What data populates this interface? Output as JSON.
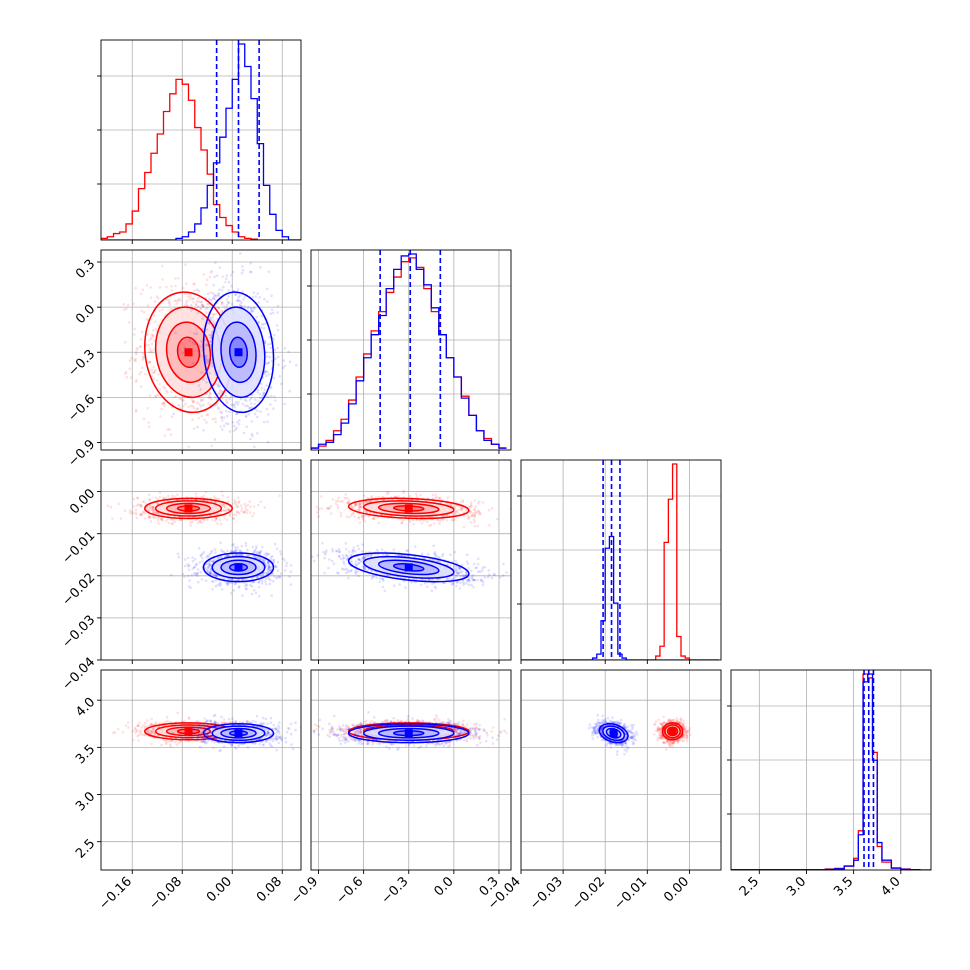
{
  "chart_data": {
    "type": "corner",
    "grid": true,
    "parameters": [
      {
        "range": [
          -0.21,
          0.11
        ],
        "ticks": [
          -0.16,
          -0.08,
          0.0,
          0.08
        ],
        "ticklabels": [
          "−0.16",
          "−0.08",
          "0.00",
          "0.08"
        ]
      },
      {
        "range": [
          -0.95,
          0.38
        ],
        "ticks": [
          -0.9,
          -0.6,
          -0.3,
          0.0,
          0.3
        ],
        "ticklabels": [
          "−0.9",
          "−0.6",
          "−0.3",
          "0.0",
          "0.3"
        ]
      },
      {
        "range": [
          -0.04,
          0.0075
        ],
        "ticks": [
          -0.04,
          -0.03,
          -0.02,
          -0.01,
          0.0
        ],
        "ticklabels": [
          "−0.04",
          "−0.03",
          "−0.02",
          "−0.01",
          "0.00"
        ]
      },
      {
        "range": [
          2.2,
          4.32
        ],
        "ticks": [
          2.5,
          3.0,
          3.5,
          4.0
        ],
        "ticklabels": [
          "2.5",
          "3.0",
          "3.5",
          "4.0"
        ]
      }
    ],
    "series": [
      {
        "color": "#ff0000",
        "means": [
          -0.07,
          -0.3,
          -0.004,
          3.67
        ],
        "sds": [
          0.035,
          0.2,
          0.0012,
          0.045
        ],
        "corr": {
          "0-1": -0.1,
          "0-2": 0.0,
          "0-3": 0.0,
          "1-2": -0.2,
          "1-3": 0.0,
          "2-3": 0.0
        },
        "hist": [
          {
            "bins": [
              -0.21,
              -0.2,
              -0.19,
              -0.18,
              -0.17,
              -0.16,
              -0.15,
              -0.14,
              -0.13,
              -0.12,
              -0.11,
              -0.1,
              -0.09,
              -0.08,
              -0.07,
              -0.06,
              -0.05,
              -0.04,
              -0.03,
              -0.02,
              -0.01,
              0.0,
              0.01,
              0.02,
              0.03,
              0.04,
              0.05,
              0.06,
              0.07,
              0.08,
              0.09,
              0.1,
              0.11
            ],
            "counts": [
              1,
              2,
              4,
              5,
              10,
              18,
              32,
              42,
              54,
              66,
              80,
              91,
              100,
              97,
              87,
              70,
              56,
              41,
              22,
              14,
              9,
              5,
              2,
              1,
              0.5,
              0,
              0,
              0,
              0,
              0,
              0,
              0
            ]
          },
          {
            "bins": [
              -0.95,
              -0.9,
              -0.85,
              -0.8,
              -0.75,
              -0.7,
              -0.65,
              -0.6,
              -0.55,
              -0.5,
              -0.45,
              -0.4,
              -0.35,
              -0.3,
              -0.25,
              -0.2,
              -0.15,
              -0.1,
              -0.05,
              0.0,
              0.05,
              0.1,
              0.15,
              0.2,
              0.25,
              0.3,
              0.35
            ],
            "counts": [
              1,
              2,
              5,
              10,
              16,
              26,
              38,
              50,
              62,
              72,
              82,
              90,
              98,
              100,
              95,
              84,
              72,
              60,
              48,
              38,
              28,
              18,
              10,
              6,
              3,
              1
            ]
          },
          {
            "bins": [
              -0.04,
              -0.039,
              -0.038,
              -0.037,
              -0.036,
              -0.035,
              -0.034,
              -0.033,
              -0.032,
              -0.031,
              -0.03,
              -0.029,
              -0.028,
              -0.027,
              -0.026,
              -0.025,
              -0.024,
              -0.023,
              -0.022,
              -0.021,
              -0.02,
              -0.019,
              -0.018,
              -0.017,
              -0.016,
              -0.015,
              -0.014,
              -0.013,
              -0.012,
              -0.011,
              -0.01,
              -0.009,
              -0.008,
              -0.007,
              -0.006,
              -0.005,
              -0.004,
              -0.003,
              -0.002,
              -0.001,
              0.0,
              0.001,
              0.002,
              0.003,
              0.004,
              0.005,
              0.006,
              0.007
            ],
            "counts": [
              0,
              0,
              0,
              0,
              0,
              0,
              0,
              0,
              0,
              0,
              0,
              0,
              0,
              0,
              0,
              0,
              0,
              0,
              0,
              0,
              0,
              0,
              0,
              0,
              0,
              0,
              0,
              0,
              0,
              0,
              0,
              0,
              2,
              7,
              60,
              82,
              100,
              12,
              2,
              1,
              0,
              0,
              0,
              0,
              0,
              0,
              0
            ]
          },
          {
            "bins": [
              2.2,
              2.3,
              2.4,
              2.5,
              2.6,
              2.7,
              2.8,
              2.9,
              3.0,
              3.1,
              3.2,
              3.3,
              3.4,
              3.5,
              3.55,
              3.6,
              3.65,
              3.7,
              3.75,
              3.8,
              3.9,
              4.0,
              4.1,
              4.2,
              4.32
            ],
            "counts": [
              0.2,
              0.2,
              0.2,
              0.2,
              0.2,
              0.2,
              0.2,
              0.2,
              0.2,
              0.2,
              0.5,
              0.8,
              2,
              6,
              20,
              100,
              98,
              60,
              12,
              4,
              1,
              0.5,
              0.2,
              0
            ]
          }
        ]
      },
      {
        "color": "#0000ff",
        "means": [
          0.01,
          -0.3,
          -0.018,
          3.65
        ],
        "sds": [
          0.028,
          0.2,
          0.0017,
          0.05
        ],
        "corr": {
          "0-1": -0.1,
          "0-2": 0.0,
          "0-3": 0.0,
          "1-2": -0.45,
          "1-3": 0.0,
          "2-3": -0.3
        },
        "quantiles": [
          [
            -0.025,
            0.01,
            0.043
          ],
          [
            -0.49,
            -0.29,
            -0.09
          ],
          [
            -0.0205,
            -0.0185,
            -0.0165
          ],
          [
            3.61,
            3.66,
            3.71
          ]
        ],
        "hist": [
          {
            "bins": [
              -0.21,
              -0.2,
              -0.19,
              -0.18,
              -0.17,
              -0.16,
              -0.15,
              -0.14,
              -0.13,
              -0.12,
              -0.11,
              -0.1,
              -0.09,
              -0.08,
              -0.07,
              -0.06,
              -0.05,
              -0.04,
              -0.03,
              -0.02,
              -0.01,
              0.0,
              0.01,
              0.02,
              0.03,
              0.04,
              0.05,
              0.06,
              0.07,
              0.08,
              0.09,
              0.1,
              0.11
            ],
            "counts": [
              0,
              0,
              0,
              0,
              0,
              0,
              0,
              0,
              0,
              0,
              0,
              0,
              1,
              2,
              5,
              10,
              20,
              34,
              48,
              64,
              82,
              100,
              122,
              108,
              88,
              60,
              34,
              16,
              6,
              2,
              0,
              0
            ]
          },
          {
            "bins": [
              -0.95,
              -0.9,
              -0.85,
              -0.8,
              -0.75,
              -0.7,
              -0.65,
              -0.6,
              -0.55,
              -0.5,
              -0.45,
              -0.4,
              -0.35,
              -0.3,
              -0.25,
              -0.2,
              -0.15,
              -0.1,
              -0.05,
              0.0,
              0.05,
              0.1,
              0.15,
              0.2,
              0.25,
              0.3,
              0.35
            ],
            "counts": [
              1,
              3,
              4,
              8,
              14,
              24,
              36,
              48,
              60,
              70,
              84,
              94,
              101,
              102,
              94,
              86,
              74,
              60,
              48,
              38,
              27,
              18,
              10,
              5,
              3,
              1
            ]
          },
          {
            "bins": [
              -0.04,
              -0.039,
              -0.038,
              -0.037,
              -0.036,
              -0.035,
              -0.034,
              -0.033,
              -0.032,
              -0.031,
              -0.03,
              -0.029,
              -0.028,
              -0.027,
              -0.026,
              -0.025,
              -0.024,
              -0.023,
              -0.022,
              -0.021,
              -0.02,
              -0.019,
              -0.018,
              -0.017,
              -0.016,
              -0.015,
              -0.014,
              -0.013,
              -0.012,
              -0.011,
              -0.01,
              -0.009,
              -0.008,
              -0.007,
              -0.006,
              -0.005,
              -0.004,
              -0.003,
              -0.002,
              -0.001,
              0.0,
              0.001,
              0.002,
              0.003,
              0.004,
              0.005,
              0.006,
              0.007
            ],
            "counts": [
              0,
              0,
              0,
              0,
              0,
              0,
              0,
              0,
              0,
              0,
              0,
              0,
              0,
              0,
              0,
              0,
              0,
              1,
              3,
              20,
              57,
              63,
              29,
              3,
              1,
              0,
              0,
              0,
              0,
              0,
              0,
              0,
              0,
              0,
              0,
              0,
              0,
              0,
              0,
              0,
              0,
              0,
              0,
              0,
              0,
              0,
              0
            ]
          },
          {
            "bins": [
              2.2,
              2.3,
              2.4,
              2.5,
              2.6,
              2.7,
              2.8,
              2.9,
              3.0,
              3.1,
              3.2,
              3.3,
              3.4,
              3.5,
              3.55,
              3.6,
              3.65,
              3.7,
              3.75,
              3.8,
              3.9,
              4.0,
              4.1,
              4.2,
              4.32
            ],
            "counts": [
              0.1,
              0.1,
              0.1,
              0.1,
              0.1,
              0.1,
              0.1,
              0.1,
              0.1,
              0.1,
              0.3,
              0.6,
              2,
              5,
              18,
              96,
              100,
              56,
              14,
              5,
              1,
              0.4,
              0.2,
              0
            ]
          }
        ]
      }
    ]
  }
}
